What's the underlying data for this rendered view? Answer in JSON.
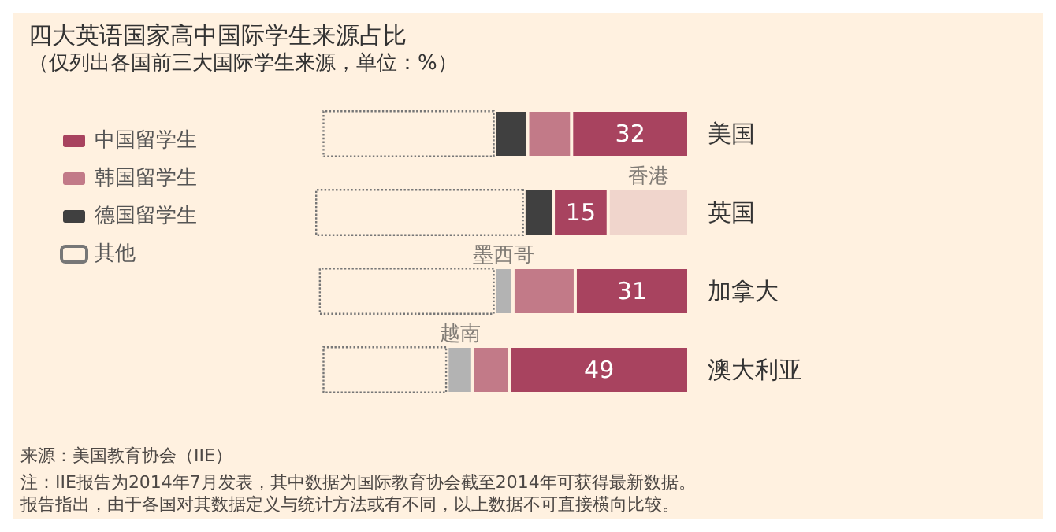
{
  "chart_data": {
    "type": "bar",
    "orientation": "horizontal",
    "stacked": true,
    "title": "四大英语国家高中国际学生来源占比",
    "subtitle": "（仅列出各国前三大国际学生来源，单位：%）",
    "categories": [
      "美国",
      "英国",
      "加拿大",
      "澳大利亚"
    ],
    "series": [
      {
        "color": "#f0d5cc",
        "values": [
          null,
          22,
          null,
          null
        ],
        "value_labels": [
          null,
          "香港",
          null,
          null
        ]
      },
      {
        "name": "中国留学生",
        "color": "#a8435f",
        "values": [
          32,
          15,
          31,
          49
        ],
        "value_labels": [
          "32",
          "15",
          "31",
          "49"
        ]
      },
      {
        "name": "韩国留学生",
        "color": "#c27a88",
        "values": [
          12,
          null,
          17,
          10
        ]
      },
      {
        "name": "德国留学生",
        "color": "#404040",
        "values": [
          9,
          8,
          null,
          null
        ]
      },
      {
        "color": "#b3b3b3",
        "values": [
          null,
          null,
          5,
          7
        ],
        "value_labels": [
          null,
          null,
          "墨西哥",
          "越南"
        ]
      },
      {
        "name": "其他",
        "color": "#fff1e0",
        "line_style": "dotted",
        "values": [
          47,
          57,
          48,
          34
        ]
      }
    ],
    "legend": "left",
    "tick_labels": "y",
    "annotations": [
      "来源：美国教育协会（IIE）",
      "注：IIE报告为2014年7月发表，其中数据为国际教育协会截至2014年可获得最新数据。",
      "报告指出，由于各国对其数据定义与统计方法或有不同，以上数据不可直接横向比较。"
    ]
  }
}
